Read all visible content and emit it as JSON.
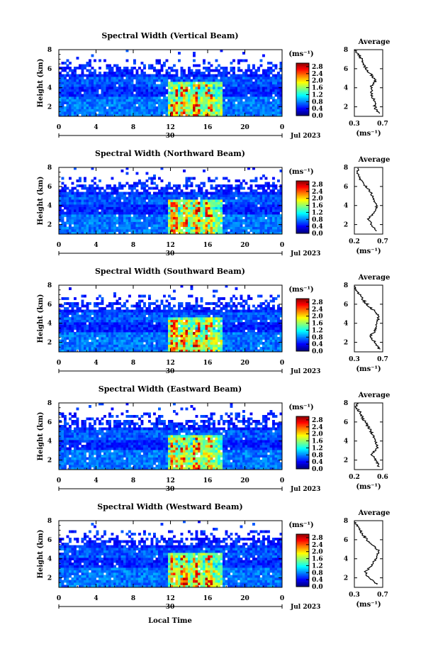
{
  "figure": {
    "date_label": "Jul 2023",
    "day_label": "30",
    "x_label": "Local Time",
    "y_label": "Height (km)",
    "unit_label": "(ms⁻¹)",
    "avg_title": "Average"
  },
  "chart_data": [
    {
      "type": "heatmap",
      "title": "Spectral Width (Vertical Beam)",
      "x_ticks": [
        "0",
        "4",
        "8",
        "12",
        "16",
        "20",
        "0"
      ],
      "y_ticks": [
        "2",
        "4",
        "6",
        "8"
      ],
      "xlim": [
        0,
        24
      ],
      "ylim": [
        1,
        8
      ],
      "colorbar": {
        "ticks": [
          "0.0",
          "0.4",
          "0.8",
          "1.2",
          "1.6",
          "2.0",
          "2.4",
          "2.8"
        ],
        "range": [
          0,
          3.0
        ]
      },
      "avg": {
        "x_ticks": [
          "0.3",
          "0.7"
        ],
        "xlim": [
          0.3,
          0.7
        ],
        "profile": [
          [
            1.3,
            0.66
          ],
          [
            1.8,
            0.6
          ],
          [
            2.5,
            0.58
          ],
          [
            3.2,
            0.55
          ],
          [
            4.0,
            0.53
          ],
          [
            4.8,
            0.6
          ],
          [
            5.5,
            0.52
          ],
          [
            6.2,
            0.45
          ],
          [
            7.0,
            0.4
          ],
          [
            7.6,
            0.35
          ],
          [
            8.0,
            0.3
          ]
        ]
      }
    },
    {
      "type": "heatmap",
      "title": "Spectral Width (Northward Beam)",
      "x_ticks": [
        "0",
        "4",
        "8",
        "12",
        "16",
        "20",
        "0"
      ],
      "y_ticks": [
        "2",
        "4",
        "6",
        "8"
      ],
      "xlim": [
        0,
        24
      ],
      "ylim": [
        1,
        8
      ],
      "colorbar": {
        "ticks": [
          "0.0",
          "0.4",
          "0.8",
          "1.2",
          "1.6",
          "2.0",
          "2.4",
          "2.8"
        ],
        "range": [
          0,
          3.0
        ]
      },
      "avg": {
        "x_ticks": [
          "0.2",
          "0.7"
        ],
        "xlim": [
          0.2,
          0.7
        ],
        "profile": [
          [
            1.3,
            0.6
          ],
          [
            2.0,
            0.5
          ],
          [
            2.6,
            0.45
          ],
          [
            3.3,
            0.55
          ],
          [
            4.0,
            0.6
          ],
          [
            4.6,
            0.53
          ],
          [
            5.3,
            0.5
          ],
          [
            6.0,
            0.4
          ],
          [
            6.8,
            0.3
          ],
          [
            7.4,
            0.25
          ],
          [
            8.0,
            0.28
          ]
        ]
      }
    },
    {
      "type": "heatmap",
      "title": "Spectral Width (Southward Beam)",
      "x_ticks": [
        "0",
        "4",
        "8",
        "12",
        "16",
        "20",
        "0"
      ],
      "y_ticks": [
        "2",
        "4",
        "6",
        "8"
      ],
      "xlim": [
        0,
        24
      ],
      "ylim": [
        1,
        8
      ],
      "colorbar": {
        "ticks": [
          "0.0",
          "0.4",
          "0.8",
          "1.2",
          "1.6",
          "2.0",
          "2.4",
          "2.8"
        ],
        "range": [
          0,
          3.0
        ]
      },
      "avg": {
        "x_ticks": [
          "0.3",
          "0.7"
        ],
        "xlim": [
          0.3,
          0.7
        ],
        "profile": [
          [
            1.3,
            0.65
          ],
          [
            2.0,
            0.6
          ],
          [
            2.6,
            0.52
          ],
          [
            3.3,
            0.6
          ],
          [
            4.0,
            0.62
          ],
          [
            4.8,
            0.65
          ],
          [
            5.5,
            0.55
          ],
          [
            6.2,
            0.45
          ],
          [
            7.0,
            0.38
          ],
          [
            7.6,
            0.32
          ],
          [
            8.0,
            0.3
          ]
        ]
      }
    },
    {
      "type": "heatmap",
      "title": "Spectral Width (Eastward Beam)",
      "x_ticks": [
        "0",
        "4",
        "8",
        "12",
        "16",
        "20",
        "0"
      ],
      "y_ticks": [
        "2",
        "4",
        "6",
        "8"
      ],
      "xlim": [
        0,
        24
      ],
      "ylim": [
        1,
        8
      ],
      "colorbar": {
        "ticks": [
          "0.0",
          "0.4",
          "0.8",
          "1.2",
          "1.6",
          "2.0",
          "2.4",
          "2.8"
        ],
        "range": [
          0,
          3.0
        ]
      },
      "avg": {
        "x_ticks": [
          "0.2",
          "0.6"
        ],
        "xlim": [
          0.2,
          0.6
        ],
        "profile": [
          [
            1.3,
            0.55
          ],
          [
            2.0,
            0.5
          ],
          [
            2.6,
            0.45
          ],
          [
            3.3,
            0.52
          ],
          [
            4.0,
            0.5
          ],
          [
            4.8,
            0.45
          ],
          [
            5.5,
            0.4
          ],
          [
            6.2,
            0.33
          ],
          [
            7.0,
            0.28
          ],
          [
            7.6,
            0.22
          ],
          [
            8.0,
            0.25
          ]
        ]
      }
    },
    {
      "type": "heatmap",
      "title": "Spectral Width (Westward Beam)",
      "x_ticks": [
        "0",
        "4",
        "8",
        "12",
        "16",
        "20",
        "0"
      ],
      "y_ticks": [
        "2",
        "4",
        "6",
        "8"
      ],
      "xlim": [
        0,
        24
      ],
      "ylim": [
        1,
        8
      ],
      "colorbar": {
        "ticks": [
          "0.0",
          "0.4",
          "0.8",
          "1.2",
          "1.6",
          "2.0",
          "2.4",
          "2.8"
        ],
        "range": [
          0,
          3.0
        ]
      },
      "avg": {
        "x_ticks": [
          "0.3",
          "0.7"
        ],
        "xlim": [
          0.3,
          0.7
        ],
        "profile": [
          [
            1.3,
            0.62
          ],
          [
            2.0,
            0.5
          ],
          [
            2.6,
            0.45
          ],
          [
            3.3,
            0.55
          ],
          [
            4.0,
            0.6
          ],
          [
            4.8,
            0.65
          ],
          [
            5.5,
            0.55
          ],
          [
            6.2,
            0.45
          ],
          [
            7.0,
            0.38
          ],
          [
            7.6,
            0.33
          ],
          [
            8.0,
            0.3
          ]
        ]
      }
    }
  ]
}
